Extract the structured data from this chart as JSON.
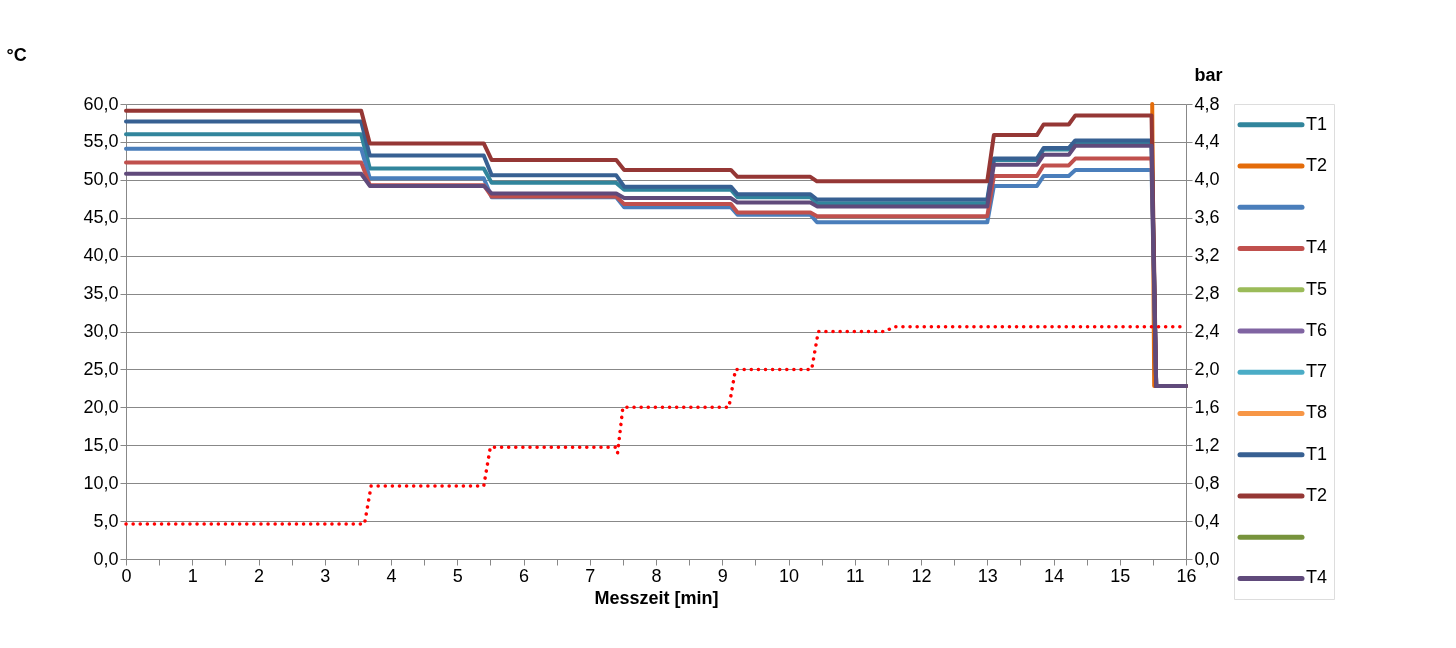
{
  "chart_data": {
    "type": "line",
    "xlabel": "Messzeit [min]",
    "ylabel": "°C",
    "y2label": "bar",
    "xlim": [
      0,
      16
    ],
    "ylim": [
      0,
      60
    ],
    "y2lim": [
      0,
      4.8
    ],
    "xticks": [
      0,
      {
        "value": 0.5,
        "label": null
      },
      1,
      {
        "value": 1.5,
        "label": null
      },
      2,
      {
        "value": 2.5,
        "label": null
      },
      3,
      {
        "value": 3.5,
        "label": null
      },
      4,
      {
        "value": 4.5,
        "label": null
      },
      5,
      {
        "value": 5.5,
        "label": null
      },
      6,
      {
        "value": 6.5,
        "label": null
      },
      7,
      {
        "value": 7.5,
        "label": null
      },
      8,
      {
        "value": 8.5,
        "label": null
      },
      9,
      {
        "value": 9.5,
        "label": null
      },
      10,
      {
        "value": 10.5,
        "label": null
      },
      11,
      {
        "value": 11.5,
        "label": null
      },
      12,
      {
        "value": 12.5,
        "label": null
      },
      13,
      {
        "value": 13.5,
        "label": null
      },
      14,
      {
        "value": 14.5,
        "label": null
      },
      15,
      {
        "value": 15.5,
        "label": null
      },
      16
    ],
    "yticks": [
      {
        "value": 0,
        "label": "0,0"
      },
      {
        "value": 5,
        "label": "5,0"
      },
      {
        "value": 10,
        "label": "10,0"
      },
      {
        "value": 15,
        "label": "15,0"
      },
      {
        "value": 20,
        "label": "20,0"
      },
      {
        "value": 25,
        "label": "25,0"
      },
      {
        "value": 30,
        "label": "30,0"
      },
      {
        "value": 35,
        "label": "35,0"
      },
      {
        "value": 40,
        "label": "40,0"
      },
      {
        "value": 45,
        "label": "45,0"
      },
      {
        "value": 50,
        "label": "50,0"
      },
      {
        "value": 55,
        "label": "55,0"
      },
      {
        "value": 60,
        "label": "60,0"
      }
    ],
    "y2ticks": [
      {
        "value": 0,
        "label": "0,0"
      },
      {
        "value": 0.4,
        "label": "0,4"
      },
      {
        "value": 0.8,
        "label": "0,8"
      },
      {
        "value": 1.2,
        "label": "1,2"
      },
      {
        "value": 1.6,
        "label": "1,6"
      },
      {
        "value": 2.0,
        "label": "2,0"
      },
      {
        "value": 2.4,
        "label": "2,4"
      },
      {
        "value": 2.8,
        "label": "2,8"
      },
      {
        "value": 3.2,
        "label": "3,2"
      },
      {
        "value": 3.6,
        "label": "3,6"
      },
      {
        "value": 4.0,
        "label": "4,0"
      },
      {
        "value": 4.4,
        "label": "4,4"
      },
      {
        "value": 4.8,
        "label": "4,8"
      }
    ],
    "grid": "y",
    "legend": "right",
    "marker": "none",
    "line_style": "solid",
    "series": [
      {
        "name": "T1",
        "color": "#31859c",
        "x": [
          0,
          3.55,
          3.68,
          5.4,
          5.52,
          7.4,
          7.52,
          9.13,
          9.23,
          10.33,
          10.43,
          13.0,
          13.1,
          13.75,
          13.85,
          14.23,
          14.33,
          15.48,
          15.55,
          16
        ],
        "values": [
          56.0,
          56.0,
          51.5,
          51.5,
          49.6,
          49.6,
          48.7,
          48.7,
          47.7,
          47.7,
          46.9,
          46.9,
          52.6,
          52.6,
          54.0,
          54.0,
          55.0,
          55.0,
          22.8,
          22.8
        ]
      },
      {
        "name": "T2",
        "color": "#e46c0a",
        "x": [
          15.49,
          15.52,
          16
        ],
        "values": [
          60,
          22.8,
          22.8
        ]
      },
      {
        "color": "#4a7ebb",
        "x": [
          0,
          3.55,
          3.68,
          5.4,
          5.52,
          7.4,
          7.52,
          9.13,
          9.23,
          10.33,
          10.43,
          13.0,
          13.1,
          13.75,
          13.85,
          14.23,
          14.33,
          15.48,
          15.55,
          16
        ],
        "values": [
          54.1,
          54.1,
          50.2,
          50.2,
          47.7,
          47.7,
          46.4,
          46.4,
          45.4,
          45.4,
          44.4,
          44.4,
          49.2,
          49.2,
          50.5,
          50.5,
          51.3,
          51.3,
          22.8,
          22.8
        ]
      },
      {
        "name": "T4",
        "color": "#c0504d",
        "x": [
          0,
          3.55,
          3.68,
          5.4,
          5.52,
          7.4,
          7.52,
          9.13,
          9.23,
          10.33,
          10.43,
          13.0,
          13.1,
          13.75,
          13.85,
          14.23,
          14.33,
          15.48,
          15.55,
          16
        ],
        "values": [
          52.3,
          52.3,
          49.3,
          49.3,
          47.8,
          47.8,
          46.8,
          46.8,
          45.7,
          45.7,
          45.2,
          45.2,
          50.5,
          50.5,
          51.9,
          51.9,
          52.8,
          52.8,
          22.8,
          22.8
        ]
      },
      {
        "name": "T5",
        "color": "#9bbb59"
      },
      {
        "name": "T6",
        "color": "#8064a2"
      },
      {
        "name": "T7",
        "color": "#4bacc6"
      },
      {
        "name": "T8",
        "color": "#f79646"
      },
      {
        "name": "T1",
        "color": "#376092",
        "x": [
          0,
          3.55,
          3.68,
          5.4,
          5.52,
          7.4,
          7.52,
          9.13,
          9.23,
          10.33,
          10.43,
          13.0,
          13.1,
          13.75,
          13.85,
          14.23,
          14.33,
          15.48,
          15.55,
          16
        ],
        "values": [
          57.7,
          57.7,
          53.2,
          53.2,
          50.6,
          50.6,
          49.1,
          49.1,
          48.1,
          48.1,
          47.4,
          47.4,
          52.8,
          52.8,
          54.2,
          54.2,
          55.2,
          55.2,
          22.8,
          22.8
        ]
      },
      {
        "name": "T2",
        "color": "#953735",
        "x": [
          0,
          3.55,
          3.68,
          5.4,
          5.52,
          7.4,
          7.52,
          9.13,
          9.23,
          10.33,
          10.43,
          13.0,
          13.1,
          13.75,
          13.85,
          14.23,
          14.33,
          15.48,
          15.55,
          16
        ],
        "values": [
          59.1,
          59.1,
          54.8,
          54.8,
          52.6,
          52.6,
          51.3,
          51.3,
          50.4,
          50.4,
          49.8,
          49.8,
          55.9,
          55.9,
          57.3,
          57.3,
          58.5,
          58.5,
          22.8,
          22.8
        ]
      },
      {
        "color": "#77933c"
      },
      {
        "name": "T4",
        "color": "#604a7b",
        "x": [
          0,
          3.55,
          3.68,
          5.4,
          5.52,
          7.4,
          7.52,
          9.13,
          9.23,
          10.33,
          10.43,
          13.0,
          13.1,
          13.75,
          13.85,
          14.23,
          14.33,
          15.48,
          15.55,
          16
        ],
        "values": [
          50.8,
          50.8,
          49.2,
          49.2,
          48.2,
          48.2,
          47.6,
          47.6,
          47.0,
          47.0,
          46.5,
          46.5,
          52.0,
          52.0,
          53.3,
          53.3,
          54.5,
          54.5,
          22.8,
          22.8
        ]
      },
      {
        "color": "#ff0000",
        "axis": "y2",
        "line_style": "dotted",
        "x": [
          0,
          3.6,
          3.7,
          5.4,
          5.5,
          7.4,
          7.42,
          7.5,
          9.1,
          9.2,
          10.35,
          10.45,
          11.45,
          11.6,
          16
        ],
        "values": [
          0.37,
          0.37,
          0.77,
          0.77,
          1.18,
          1.18,
          1.12,
          1.6,
          1.6,
          2.0,
          2.0,
          2.4,
          2.4,
          2.45,
          2.45
        ]
      }
    ]
  }
}
